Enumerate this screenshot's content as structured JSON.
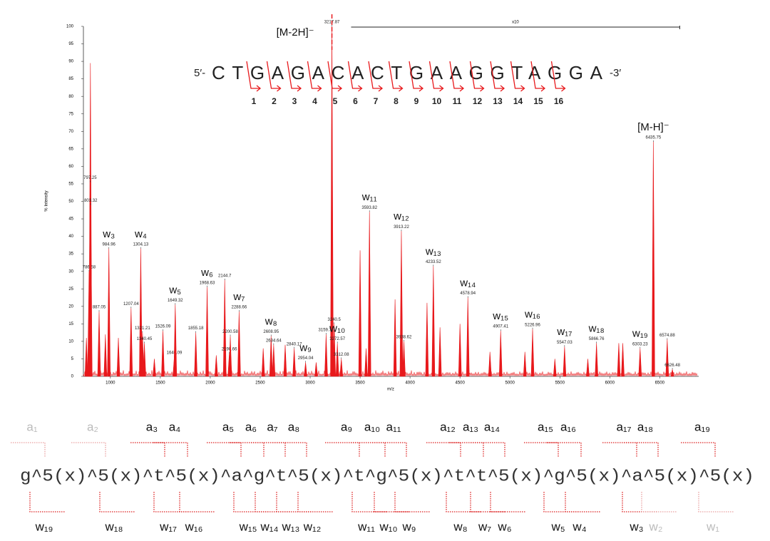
{
  "chart_data": {
    "type": "spectrum",
    "xlabel": "m/z",
    "ylabel": "% Intensity",
    "xlim": [
      730,
      6890
    ],
    "ylim": [
      0,
      100
    ],
    "xticks": [
      1000,
      1500,
      2000,
      2500,
      3000,
      3500,
      4000,
      4500,
      5000,
      5500,
      6000,
      6500
    ],
    "yticks": [
      0,
      5,
      10,
      15,
      20,
      25,
      30,
      35,
      40,
      45,
      50,
      55,
      60,
      65,
      70,
      75,
      80,
      85,
      90,
      95,
      100
    ],
    "color": "#e8191c",
    "peaks": {
      "x": [
        786.58,
        797.25,
        803.32,
        887.05,
        984.96,
        1207.04,
        1304.13,
        1321.21,
        1340.45,
        1526.09,
        1640.09,
        1649.32,
        1855.18,
        1968.63,
        2144.7,
        2190.66,
        2200.58,
        2288.66,
        2608.95,
        2634.64,
        2840.17,
        2954.04,
        3159.71,
        3217.87,
        3240.5,
        3272.57,
        3312.08,
        3593.82,
        3913.22,
        3938.62,
        4233.52,
        4578.94,
        4907.41,
        5226.96,
        5547.03,
        5866.76,
        6303.23,
        6435.75,
        6574.88,
        6626.48
      ],
      "values": [
        30,
        55.5,
        49,
        18.5,
        36.5,
        19.5,
        36.5,
        12.5,
        9.5,
        13,
        5.5,
        20.5,
        12.5,
        25.5,
        27.5,
        6.5,
        11.5,
        18.5,
        11.5,
        9,
        8,
        4,
        12,
        100,
        15,
        9.5,
        5,
        47,
        41.5,
        10,
        31.5,
        22.5,
        13,
        13.5,
        8.5,
        9.5,
        8,
        67,
        10.5,
        2
      ],
      "ion_labels": [
        null,
        null,
        null,
        null,
        "w₃",
        null,
        "w₄",
        null,
        null,
        null,
        null,
        "w₅",
        null,
        "w₆",
        null,
        null,
        null,
        "w₇",
        "w₈",
        null,
        null,
        "w₉",
        null,
        "[M-2H]⁻",
        null,
        "w₁₀",
        null,
        "w₁₁",
        "w₁₂",
        null,
        "w₁₃",
        "w₁₄",
        "w₁₅",
        "w₁₆",
        "w₁₇",
        "w₁₈",
        "w₁₉",
        "[M-H]⁻",
        null,
        null
      ]
    },
    "unlabeled_peaks": {
      "x": [
        760,
        800,
        950,
        1080,
        1440,
        2060,
        2530,
        2750,
        3060,
        3500,
        3560,
        3850,
        4170,
        4300,
        4500,
        4800,
        5150,
        5450,
        5780,
        6090,
        6130
      ],
      "values": [
        11,
        89.5,
        12,
        11,
        5,
        6,
        8,
        9,
        4,
        36,
        8,
        22,
        21,
        14,
        15,
        7,
        7,
        5,
        5,
        9.5,
        9.5
      ]
    },
    "zoom_label": "x10",
    "zoom_range": [
      3410,
      6700
    ]
  },
  "sequence": {
    "prime5": "5′-",
    "letters": "CTGAGACACTGAAGGTAGGA",
    "prime3": "-3′",
    "cleavage_numbers": [
      1,
      2,
      3,
      4,
      5,
      6,
      7,
      8,
      9,
      10,
      11,
      12,
      13,
      14,
      15,
      16
    ]
  },
  "fragment_map": {
    "sequence": "g^5(x)^5(x)^t^5(x)^a^g^t^5(x)^t^g^5(x)^t^t^5(x)^g^5(x)^a^5(x)^5(x)",
    "a_labels": [
      {
        "text": "a₁",
        "faded": true
      },
      {
        "text": "a₂",
        "faded": true
      },
      {
        "text": "a₃",
        "faded": false
      },
      {
        "text": "a₄",
        "faded": false
      },
      {
        "text": "a₅",
        "faded": false
      },
      {
        "text": "a₆",
        "faded": false
      },
      {
        "text": "a₇",
        "faded": false
      },
      {
        "text": "a₈",
        "faded": false
      },
      {
        "text": "a₉",
        "faded": false
      },
      {
        "text": "a₁₀",
        "faded": false
      },
      {
        "text": "a₁₁",
        "faded": false
      },
      {
        "text": "a₁₂",
        "faded": false
      },
      {
        "text": "a₁₃",
        "faded": false
      },
      {
        "text": "a₁₄",
        "faded": false
      },
      {
        "text": "a₁₅",
        "faded": false
      },
      {
        "text": "a₁₆",
        "faded": false
      },
      {
        "text": "a₁₇",
        "faded": false
      },
      {
        "text": "a₁₈",
        "faded": false
      },
      {
        "text": "a₁₉",
        "faded": false
      }
    ],
    "w_labels": [
      {
        "text": "w₁₉",
        "faded": false
      },
      {
        "text": "w₁₈",
        "faded": false
      },
      {
        "text": "w₁₇",
        "faded": false
      },
      {
        "text": "w₁₆",
        "faded": false
      },
      {
        "text": "w₁₅",
        "faded": false
      },
      {
        "text": "w₁₄",
        "faded": false
      },
      {
        "text": "w₁₃",
        "faded": false
      },
      {
        "text": "w₁₂",
        "faded": false
      },
      {
        "text": "w₁₁",
        "faded": false
      },
      {
        "text": "w₁₀",
        "faded": false
      },
      {
        "text": "w₉",
        "faded": false
      },
      {
        "text": "w₈",
        "faded": false
      },
      {
        "text": "w₇",
        "faded": false
      },
      {
        "text": "w₆",
        "faded": false
      },
      {
        "text": "w₅",
        "faded": false
      },
      {
        "text": "w₄",
        "faded": false
      },
      {
        "text": "w₃",
        "faded": false
      },
      {
        "text": "w₂",
        "faded": true
      },
      {
        "text": "w₁",
        "faded": true
      }
    ]
  }
}
